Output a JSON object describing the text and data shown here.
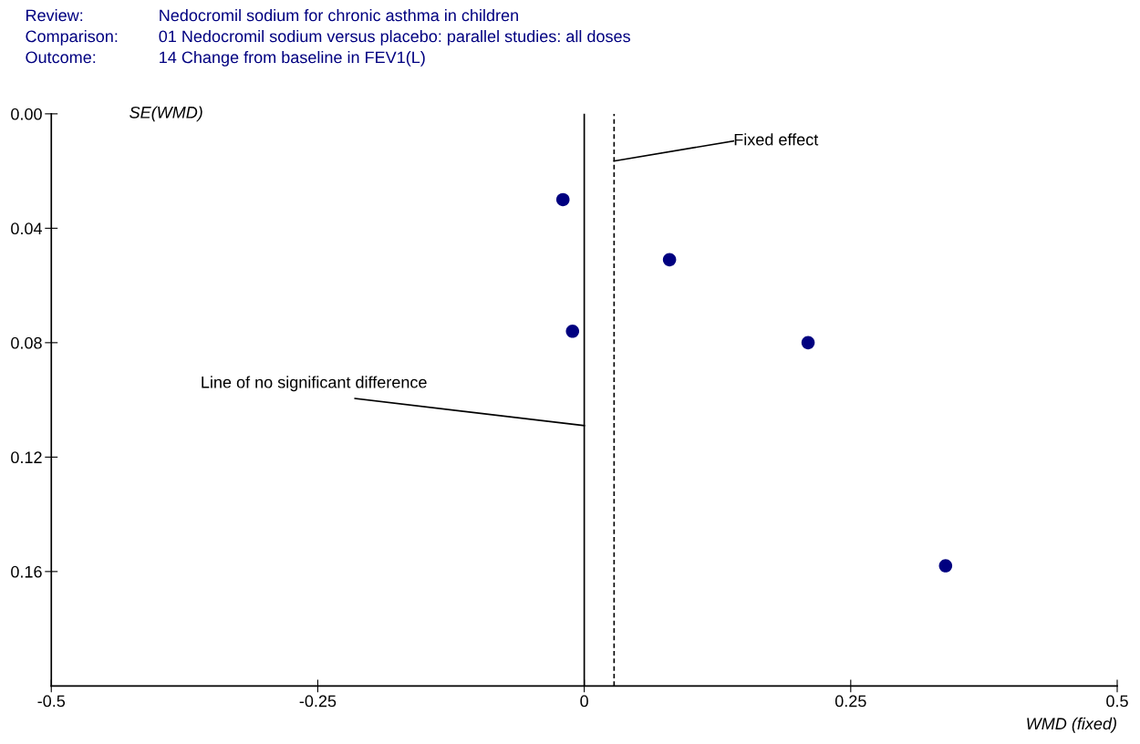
{
  "chart_data": {
    "type": "scatter",
    "annotations": [
      "Review:",
      "Nedocromil sodium for chronic asthma in children",
      "Comparison:",
      "01 Nedocromil sodium versus placebo: parallel studies: all doses",
      "Outcome:",
      "14 Change from baseline in FEV1(L)"
    ],
    "xlabel": "WMD (fixed)",
    "ylabel": "SE(WMD)",
    "series": [
      {
        "color": "#000080",
        "x": [
          -0.02,
          0.08,
          -0.011,
          0.21,
          0.339
        ],
        "values": [
          0.03,
          0.051,
          0.076,
          0.08,
          0.158
        ]
      }
    ],
    "marker": "circle",
    "xlim": [
      -0.5,
      0.5
    ],
    "xticks": [
      -0.5,
      -0.25,
      0,
      0.25,
      0.5
    ],
    "ylim": [
      0.2,
      0.0
    ],
    "yticks": [
      {
        "value": 0,
        "label": "0.00"
      },
      0.04,
      0.08,
      0.12,
      0.16
    ],
    "ref_lines": [
      {
        "axis": "x",
        "value": 0,
        "label": "Line of no significant difference",
        "line_style": "solid",
        "color": "#000000"
      },
      {
        "axis": "x",
        "value": 0.028,
        "label": "Fixed effect",
        "line_style": "dashed",
        "color": "#000000"
      }
    ],
    "grid": false,
    "legend": false
  }
}
